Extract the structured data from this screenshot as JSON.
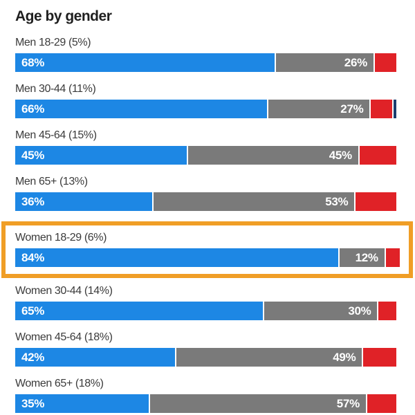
{
  "title": "Age by gender",
  "chart_data": {
    "type": "bar",
    "variant": "horizontal-stacked",
    "title": "Age by gender",
    "xlim": [
      0,
      100
    ],
    "grid": false,
    "legend": "none",
    "colors": {
      "blue": "#1d87e4",
      "gray": "#7a7a7a",
      "red": "#e02227",
      "navy": "#1c3d6e",
      "highlight": "#f09e26"
    },
    "rows": [
      {
        "label": "Men 18-29 (5%)",
        "highlighted": false,
        "segments": [
          {
            "color": "blue",
            "value": 68,
            "text": "68%"
          },
          {
            "color": "gray",
            "value": 26,
            "text": "26%"
          },
          {
            "color": "red",
            "value": 6,
            "text": ""
          }
        ]
      },
      {
        "label": "Men 30-44 (11%)",
        "highlighted": false,
        "segments": [
          {
            "color": "blue",
            "value": 66,
            "text": "66%"
          },
          {
            "color": "gray",
            "value": 27,
            "text": "27%"
          },
          {
            "color": "red",
            "value": 6,
            "text": ""
          },
          {
            "color": "navy",
            "value": 1,
            "text": ""
          }
        ]
      },
      {
        "label": "Men 45-64 (15%)",
        "highlighted": false,
        "segments": [
          {
            "color": "blue",
            "value": 45,
            "text": "45%"
          },
          {
            "color": "gray",
            "value": 45,
            "text": "45%"
          },
          {
            "color": "red",
            "value": 10,
            "text": ""
          }
        ]
      },
      {
        "label": "Men 65+ (13%)",
        "highlighted": false,
        "segments": [
          {
            "color": "blue",
            "value": 36,
            "text": "36%"
          },
          {
            "color": "gray",
            "value": 53,
            "text": "53%"
          },
          {
            "color": "red",
            "value": 11,
            "text": ""
          }
        ]
      },
      {
        "label": "Women 18-29 (6%)",
        "highlighted": true,
        "segments": [
          {
            "color": "blue",
            "value": 84,
            "text": "84%"
          },
          {
            "color": "gray",
            "value": 12,
            "text": "12%"
          },
          {
            "color": "red",
            "value": 4,
            "text": ""
          }
        ]
      },
      {
        "label": "Women 30-44 (14%)",
        "highlighted": false,
        "segments": [
          {
            "color": "blue",
            "value": 65,
            "text": "65%"
          },
          {
            "color": "gray",
            "value": 30,
            "text": "30%"
          },
          {
            "color": "red",
            "value": 5,
            "text": ""
          }
        ]
      },
      {
        "label": "Women 45-64 (18%)",
        "highlighted": false,
        "segments": [
          {
            "color": "blue",
            "value": 42,
            "text": "42%"
          },
          {
            "color": "gray",
            "value": 49,
            "text": "49%"
          },
          {
            "color": "red",
            "value": 9,
            "text": ""
          }
        ]
      },
      {
        "label": "Women 65+ (18%)",
        "highlighted": false,
        "segments": [
          {
            "color": "blue",
            "value": 35,
            "text": "35%"
          },
          {
            "color": "gray",
            "value": 57,
            "text": "57%"
          },
          {
            "color": "red",
            "value": 8,
            "text": ""
          }
        ]
      }
    ]
  }
}
